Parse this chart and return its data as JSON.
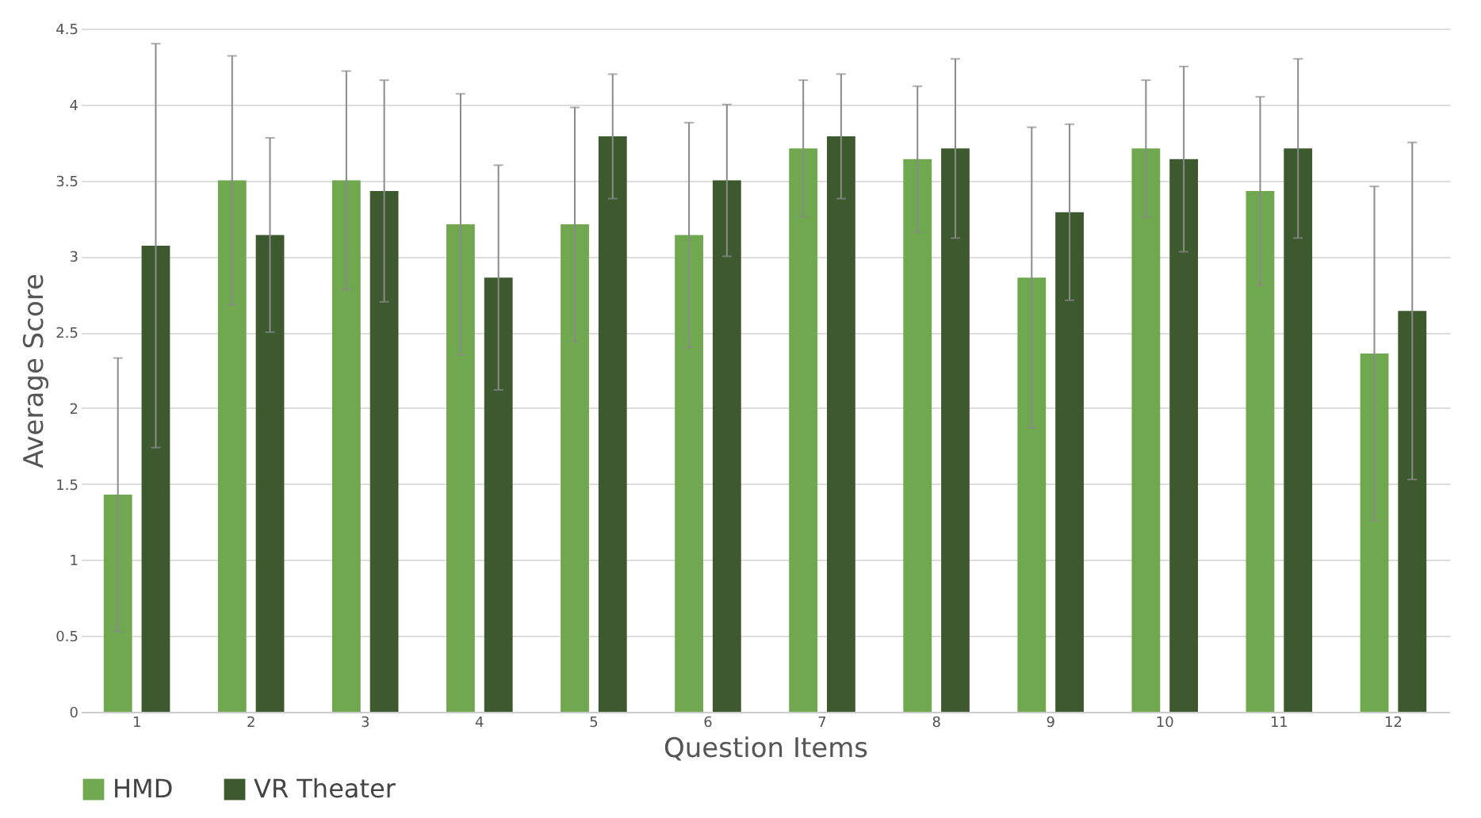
{
  "chart_data": {
    "type": "bar",
    "xlabel": "Question Items",
    "ylabel": "Average Score",
    "categories": [
      "1",
      "2",
      "3",
      "4",
      "5",
      "6",
      "7",
      "8",
      "9",
      "10",
      "11",
      "12"
    ],
    "series": [
      {
        "name": "HMD",
        "color": "#70a84f",
        "values": [
          1.43,
          3.5,
          3.5,
          3.21,
          3.21,
          3.14,
          3.71,
          3.64,
          2.86,
          3.71,
          3.43,
          2.36
        ],
        "errors": [
          0.9,
          0.82,
          0.72,
          0.86,
          0.77,
          0.74,
          0.45,
          0.48,
          0.99,
          0.45,
          0.62,
          1.1
        ]
      },
      {
        "name": "VR Theater",
        "color": "#3c5a2e",
        "values": [
          3.07,
          3.14,
          3.43,
          2.86,
          3.79,
          3.5,
          3.79,
          3.71,
          3.29,
          3.64,
          3.71,
          2.64
        ],
        "errors": [
          1.33,
          0.64,
          0.73,
          0.74,
          0.41,
          0.5,
          0.41,
          0.59,
          0.58,
          0.61,
          0.59,
          1.11
        ]
      }
    ],
    "ylim": [
      0,
      4.5
    ],
    "yticks": [
      0,
      0.5,
      1,
      1.5,
      2,
      2.5,
      3,
      3.5,
      4,
      4.5
    ],
    "grid": "y",
    "legend": "bottom"
  }
}
